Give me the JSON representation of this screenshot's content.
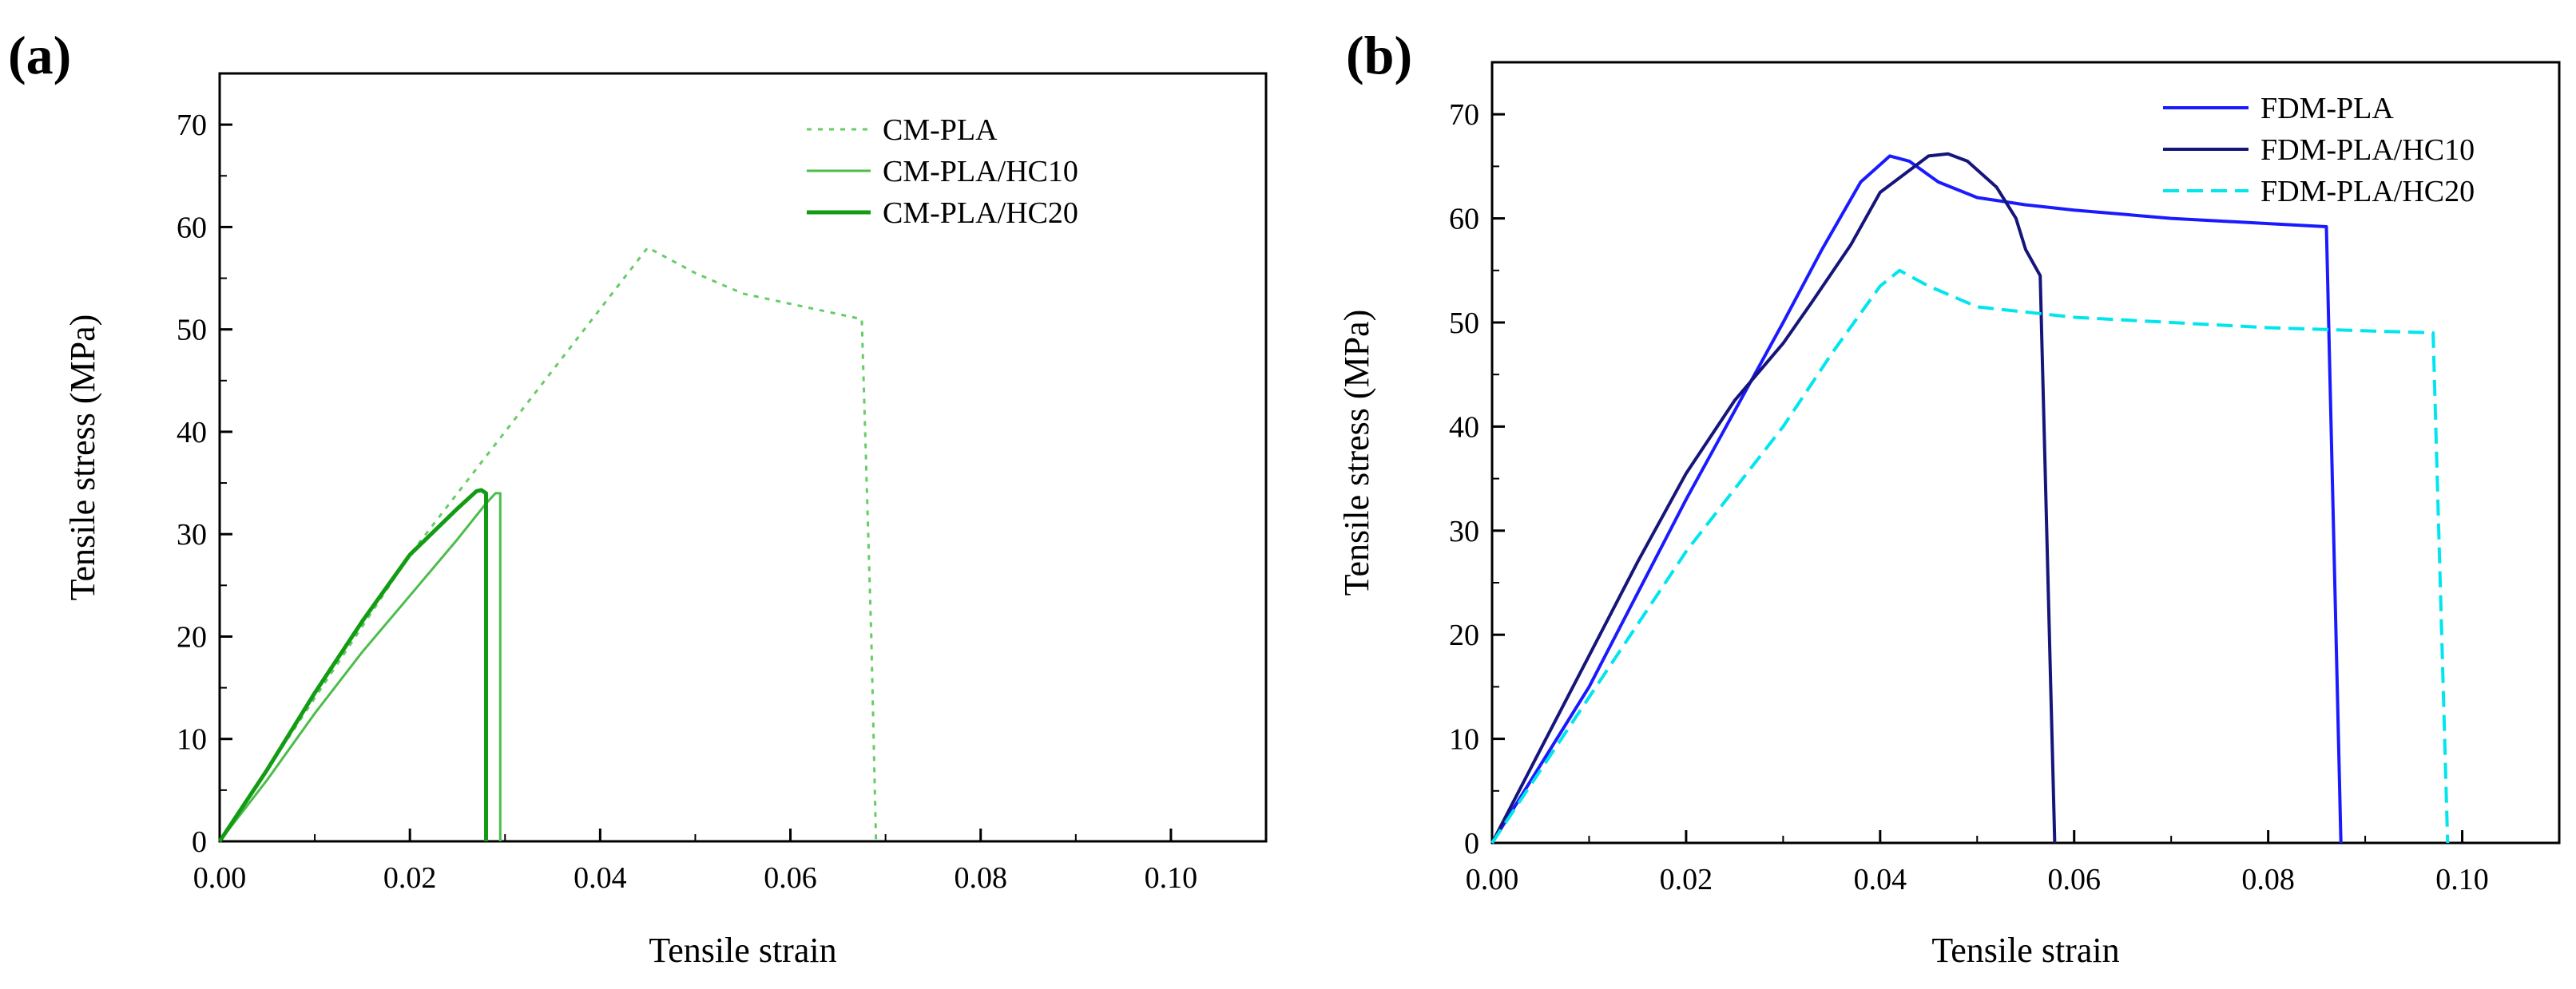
{
  "chart_data": [
    {
      "type": "line",
      "panel_label": "(a)",
      "xlabel": "Tensile strain",
      "ylabel": "Tensile stress (MPa)",
      "xlim": [
        0,
        0.11
      ],
      "ylim": [
        0,
        75
      ],
      "xticks": [
        0.0,
        0.02,
        0.04,
        0.06,
        0.08,
        0.1
      ],
      "xtick_labels": [
        "0.00",
        "0.02",
        "0.04",
        "0.06",
        "0.08",
        "0.10"
      ],
      "yticks": [
        0,
        10,
        20,
        30,
        40,
        50,
        60,
        70
      ],
      "ytick_labels": [
        "0",
        "10",
        "20",
        "30",
        "40",
        "50",
        "60",
        "70"
      ],
      "grid": false,
      "legend_position": "top-right",
      "series": [
        {
          "name": "CM-PLA",
          "color": "#66cc66",
          "style": "dotted",
          "width": 3,
          "x": [
            0,
            0.01,
            0.02,
            0.03,
            0.04,
            0.045,
            0.05,
            0.055,
            0.06,
            0.065,
            0.0675,
            0.0685,
            0.069
          ],
          "y": [
            0,
            14,
            28,
            40,
            52,
            58,
            55.5,
            53.5,
            52.5,
            51.5,
            51,
            20,
            0
          ]
        },
        {
          "name": "CM-PLA/HC10",
          "color": "#4bbd4b",
          "style": "solid",
          "width": 3,
          "x": [
            0,
            0.005,
            0.01,
            0.015,
            0.02,
            0.025,
            0.028,
            0.0285,
            0.029,
            0.0295,
            0.0295
          ],
          "y": [
            0,
            6,
            12.5,
            18.5,
            24,
            29.5,
            33,
            33.5,
            34,
            34,
            0
          ]
        },
        {
          "name": "CM-PLA/HC20",
          "color": "#139c13",
          "style": "solid",
          "width": 5,
          "x": [
            0,
            0.005,
            0.01,
            0.015,
            0.02,
            0.025,
            0.027,
            0.0275,
            0.028,
            0.028
          ],
          "y": [
            0,
            7,
            14.5,
            21.5,
            28,
            32.5,
            34.2,
            34.3,
            34,
            0
          ]
        }
      ]
    },
    {
      "type": "line",
      "panel_label": "(b)",
      "xlabel": "Tensile strain",
      "ylabel": "Tensile stress (MPa)",
      "xlim": [
        0,
        0.11
      ],
      "ylim": [
        0,
        75
      ],
      "xticks": [
        0.0,
        0.02,
        0.04,
        0.06,
        0.08,
        0.1
      ],
      "xtick_labels": [
        "0.00",
        "0.02",
        "0.04",
        "0.06",
        "0.08",
        "0.10"
      ],
      "yticks": [
        0,
        10,
        20,
        30,
        40,
        50,
        60,
        70
      ],
      "ytick_labels": [
        "0",
        "10",
        "20",
        "30",
        "40",
        "50",
        "60",
        "70"
      ],
      "grid": false,
      "legend_position": "top-right",
      "series": [
        {
          "name": "FDM-PLA",
          "color": "#1a1aff",
          "style": "solid",
          "width": 4,
          "x": [
            0,
            0.01,
            0.02,
            0.03,
            0.034,
            0.038,
            0.041,
            0.043,
            0.046,
            0.05,
            0.055,
            0.06,
            0.07,
            0.08,
            0.086,
            0.0875
          ],
          "y": [
            0,
            15,
            33,
            50,
            57,
            63.5,
            66,
            65.5,
            63.5,
            62,
            61.3,
            60.8,
            60,
            59.5,
            59.2,
            0
          ]
        },
        {
          "name": "FDM-PLA/HC10",
          "color": "#15157a",
          "style": "solid",
          "width": 4,
          "x": [
            0,
            0.005,
            0.01,
            0.015,
            0.02,
            0.025,
            0.03,
            0.033,
            0.037,
            0.04,
            0.045,
            0.047,
            0.049,
            0.052,
            0.054,
            0.055,
            0.0565,
            0.058
          ],
          "y": [
            0,
            9,
            18,
            27,
            35.5,
            42.5,
            48,
            52,
            57.5,
            62.5,
            66,
            66.2,
            65.5,
            63,
            60,
            57,
            54.5,
            0
          ]
        },
        {
          "name": "FDM-PLA/HC20",
          "color": "#00e5ee",
          "style": "dashed",
          "width": 4,
          "x": [
            0,
            0.01,
            0.02,
            0.03,
            0.035,
            0.04,
            0.042,
            0.045,
            0.05,
            0.06,
            0.07,
            0.08,
            0.09,
            0.097,
            0.0985
          ],
          "y": [
            0,
            14,
            28,
            40,
            47,
            53.5,
            55,
            53.5,
            51.5,
            50.5,
            50,
            49.5,
            49.2,
            49,
            0
          ]
        }
      ]
    }
  ]
}
